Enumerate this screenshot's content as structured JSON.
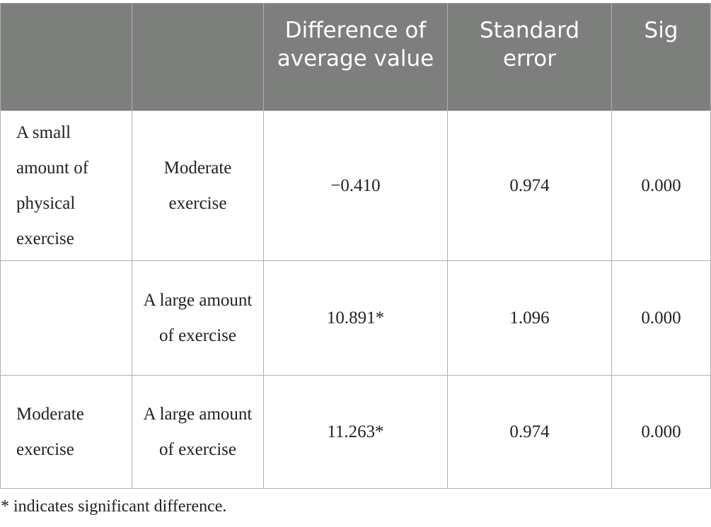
{
  "table": {
    "headers": [
      "",
      "",
      "Difference of average value",
      "Standard error",
      "Sig"
    ],
    "rows": [
      {
        "group1": "A small amount of physical exercise",
        "group2": "Moderate exercise",
        "difference": "−0.410",
        "std_error": "0.974",
        "sig": "0.000"
      },
      {
        "group1": "",
        "group2": "A large amount of exercise",
        "difference": "10.891*",
        "std_error": "1.096",
        "sig": "0.000"
      },
      {
        "group1": "Moderate exercise",
        "group2": "A large amount of exercise",
        "difference": "11.263*",
        "std_error": "0.974",
        "sig": "0.000"
      }
    ]
  },
  "footnote": "* indicates significant difference."
}
